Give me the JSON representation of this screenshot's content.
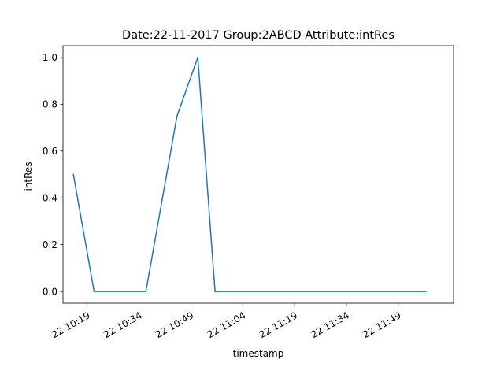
{
  "chart_data": {
    "type": "line",
    "title": "Date:22-11-2017  Group:2ABCD Attribute:intRes",
    "xlabel": "timestamp",
    "ylabel": "intRes",
    "x_ticks": [
      "22 10:19",
      "22 10:34",
      "22 10:49",
      "22 11:04",
      "22 11:19",
      "22 11:34",
      "22 11:49"
    ],
    "y_ticks": [
      "0.0",
      "0.2",
      "0.4",
      "0.6",
      "0.8",
      "1.0"
    ],
    "xlim": [
      "10:12",
      "12:05"
    ],
    "ylim": [
      -0.05,
      1.05
    ],
    "grid": false,
    "series": [
      {
        "color": "#1f77b4",
        "points": [
          {
            "x": "10:15",
            "y": 0.5
          },
          {
            "x": "10:21",
            "y": 0.0
          },
          {
            "x": "10:36",
            "y": 0.0
          },
          {
            "x": "10:45",
            "y": 0.75
          },
          {
            "x": "10:51",
            "y": 1.0
          },
          {
            "x": "10:56",
            "y": 0.0
          },
          {
            "x": "11:57",
            "y": 0.0
          }
        ]
      }
    ]
  }
}
